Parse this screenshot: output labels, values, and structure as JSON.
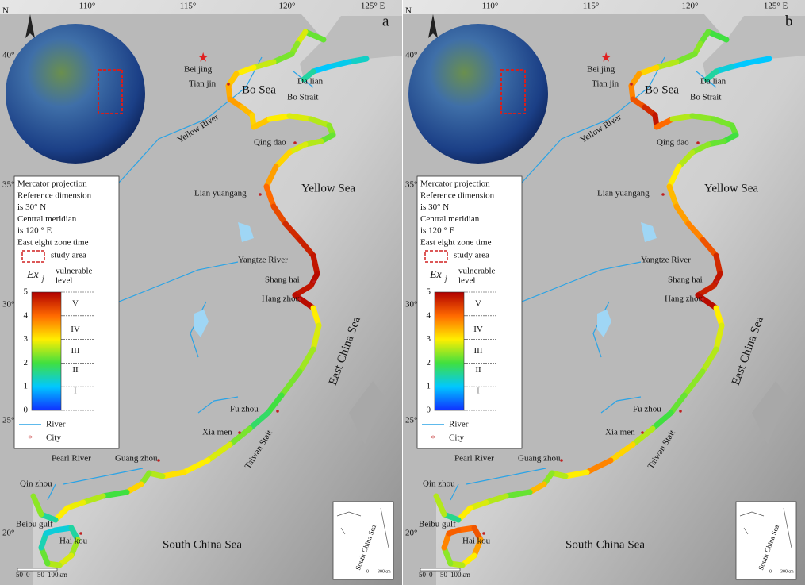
{
  "axes": {
    "north": "N",
    "lon_labels": [
      "110°",
      "115°",
      "120°",
      "125° E"
    ],
    "lat_labels": [
      "40°",
      "35°",
      "30°",
      "25°",
      "20°"
    ]
  },
  "places": [
    "Bei jing",
    "Tian jin",
    "Bo Sea",
    "Da lian",
    "Bo Strait",
    "Yellow River",
    "Qing dao",
    "Lian yuangang",
    "Yellow Sea",
    "Yangtze River",
    "Shang hai",
    "Hang zhou",
    "East China Sea",
    "Fu zhou",
    "Taiwan Stait",
    "Xia men",
    "Pearl River",
    "Guang zhou",
    "Qin zhou",
    "Beibu gulf",
    "Hai kou",
    "South China Sea"
  ],
  "legend": {
    "projection_lines": [
      "Mercator projection",
      "Reference dimension",
      "is 30° N",
      "Central meridian",
      "is 120 ° E",
      "East eight zone time"
    ],
    "study_area": "study area",
    "index": "Ex",
    "index_sub": "j",
    "level_title": [
      "vulnerable",
      "level"
    ],
    "scale_ticks": [
      0,
      1,
      2,
      3,
      4,
      5
    ],
    "levels": [
      "I",
      "II",
      "III",
      "IV",
      "V"
    ],
    "river": "River",
    "city": "City"
  },
  "scale_bar": [
    "50",
    "0",
    "50",
    "100km"
  ],
  "inset": {
    "label": "South China Sea",
    "scale": [
      "0",
      "300km"
    ]
  },
  "panels": [
    {
      "label": "a",
      "coast_levels": [
        [
          1.3,
          1.1,
          1.0,
          1.5
        ],
        [
          2.2,
          2.8,
          2.4,
          2.3,
          2.7,
          3.0,
          3.3,
          3.5,
          3.6,
          3.4,
          3.2,
          3.3,
          3.0,
          2.8,
          2.6,
          2.4,
          2.2,
          2.6,
          2.8,
          3.2,
          3.6,
          4.0,
          4.3,
          4.6,
          4.7,
          4.8,
          4.9,
          4.8,
          4.9,
          3.0,
          2.8,
          2.5,
          2.3,
          2.0,
          1.8,
          2.3,
          2.8,
          3.0,
          3.1,
          2.6,
          2.4,
          3.2,
          2.0,
          2.6,
          2.9,
          3.0,
          1.5,
          2.4
        ],
        [
          1.2,
          1.5,
          2.5,
          2.8,
          2.6,
          2.2,
          1.4,
          1.2
        ]
      ]
    },
    {
      "label": "b",
      "coast_levels": [
        [
          1.0,
          1.0,
          1.2,
          1.5
        ],
        [
          2.0,
          2.2,
          2.4,
          2.3,
          2.6,
          3.2,
          3.6,
          3.8,
          4.2,
          4.6,
          4.8,
          4.0,
          2.6,
          2.4,
          2.3,
          2.2,
          2.0,
          2.2,
          2.4,
          2.6,
          3.0,
          3.4,
          3.6,
          3.8,
          4.2,
          4.6,
          4.8,
          4.7,
          4.9,
          3.0,
          2.8,
          2.6,
          2.4,
          2.2,
          2.0,
          2.6,
          3.2,
          3.8,
          3.0,
          2.6,
          2.4,
          3.4,
          2.2,
          2.6,
          2.8,
          3.0,
          1.6,
          2.6
        ],
        [
          4.0,
          4.2,
          3.6,
          3.0,
          2.6,
          2.4,
          3.8,
          4.1
        ]
      ]
    }
  ]
}
